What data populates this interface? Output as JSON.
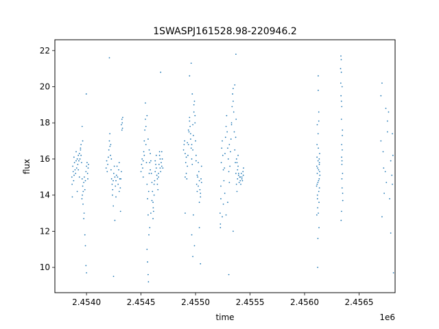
{
  "chart_data": {
    "type": "scatter",
    "title": "1SWASPJ161528.98-220946.2",
    "xlabel": "time",
    "ylabel": "flux",
    "x_offset_label": "1e6",
    "xlim": [
      2453710,
      2456830
    ],
    "ylim": [
      8.6,
      22.6
    ],
    "grid": false,
    "legend": "none",
    "color": "#1f77b4",
    "x_ticks": [
      {
        "value": 2454000,
        "label": "2.4540"
      },
      {
        "value": 2454500,
        "label": "2.4545"
      },
      {
        "value": 2455000,
        "label": "2.4550"
      },
      {
        "value": 2455500,
        "label": "2.4555"
      },
      {
        "value": 2456000,
        "label": "2.4560"
      },
      {
        "value": 2456500,
        "label": "2.4565"
      }
    ],
    "y_ticks": [
      {
        "value": 10,
        "label": "10"
      },
      {
        "value": 12,
        "label": "12"
      },
      {
        "value": 14,
        "label": "14"
      },
      {
        "value": 16,
        "label": "16"
      },
      {
        "value": 18,
        "label": "18"
      },
      {
        "value": 20,
        "label": "20"
      },
      {
        "value": 22,
        "label": "22"
      }
    ],
    "series": [
      {
        "x": [
          2453866,
          2453868,
          2453870,
          2453874,
          2453878,
          2453882,
          2453886,
          2453890,
          2453895,
          2453900,
          2453905,
          2453910,
          2453915,
          2453920,
          2453925,
          2453930,
          2453935,
          2453940,
          2453945,
          2453950,
          2453955,
          2453960,
          2453965,
          2453970,
          2453975,
          2453980,
          2453985,
          2453990,
          2453995,
          2454000,
          2454005,
          2454010,
          2454012,
          2454015,
          2454018,
          2453885,
          2453905,
          2453925,
          2453950,
          2453958,
          2453962,
          2453968,
          2453975,
          2453985,
          2453995,
          2454000,
          2453990,
          2453960,
          2453965,
          2453935,
          2453915,
          2453945,
          2453978,
          2453998,
          2454180,
          2454185,
          2454190,
          2454195,
          2454200,
          2454205,
          2454210,
          2454215,
          2454220,
          2454225,
          2454230,
          2454235,
          2454240,
          2454245,
          2454250,
          2454255,
          2454260,
          2454265,
          2454270,
          2454275,
          2454280,
          2454285,
          2454290,
          2454295,
          2454300,
          2454305,
          2454310,
          2454315,
          2454320,
          2454325,
          2454328,
          2454332,
          2454214,
          2454222,
          2454228,
          2454238,
          2454246,
          2454270,
          2454300,
          2454325,
          2454320,
          2454330,
          2454210,
          2454248,
          2454260,
          2454312,
          2454500,
          2454505,
          2454510,
          2454515,
          2454520,
          2454525,
          2454530,
          2454535,
          2454540,
          2454545,
          2454550,
          2454555,
          2454560,
          2454565,
          2454570,
          2454575,
          2454580,
          2454585,
          2454590,
          2454595,
          2454600,
          2454605,
          2454610,
          2454615,
          2454620,
          2454625,
          2454630,
          2454635,
          2454640,
          2454645,
          2454650,
          2454655,
          2454660,
          2454665,
          2454670,
          2454675,
          2454680,
          2454685,
          2454690,
          2454695,
          2454700,
          2454520,
          2454530,
          2454545,
          2454555,
          2454565,
          2454575,
          2454585,
          2454600,
          2454612,
          2454620,
          2454630,
          2454640,
          2454650,
          2454660,
          2454675,
          2454690,
          2454555,
          2454560,
          2454565,
          2454568,
          2454572,
          2454580,
          2454590,
          2454540,
          2454610,
          2454670,
          2454680,
          2454890,
          2454895,
          2454900,
          2454905,
          2454910,
          2454915,
          2454920,
          2454925,
          2454930,
          2454935,
          2454940,
          2454945,
          2454950,
          2454955,
          2454960,
          2454965,
          2454970,
          2454975,
          2454980,
          2454985,
          2454990,
          2454995,
          2455000,
          2455005,
          2455010,
          2455015,
          2455020,
          2455025,
          2455030,
          2455035,
          2455040,
          2455045,
          2455050,
          2455055,
          2454905,
          2454915,
          2454925,
          2454935,
          2454945,
          2454955,
          2454965,
          2454975,
          2454985,
          2454995,
          2455005,
          2455015,
          2455025,
          2455035,
          2455045,
          2454960,
          2454970,
          2454980,
          2454990,
          2454975,
          2454965,
          2455045,
          2454905,
          2455055,
          2455035,
          2454945,
          2455225,
          2455228,
          2455232,
          2455236,
          2455240,
          2455245,
          2455250,
          2455255,
          2455260,
          2455265,
          2455270,
          2455275,
          2455280,
          2455285,
          2455290,
          2455295,
          2455300,
          2455305,
          2455310,
          2455315,
          2455320,
          2455325,
          2455330,
          2455335,
          2455340,
          2455345,
          2455350,
          2455355,
          2455360,
          2455365,
          2455370,
          2455375,
          2455380,
          2455385,
          2455390,
          2455395,
          2455400,
          2455405,
          2455410,
          2455415,
          2455420,
          2455425,
          2455430,
          2455435,
          2455440,
          2455232,
          2455245,
          2455255,
          2455268,
          2455280,
          2455295,
          2455310,
          2455330,
          2455345,
          2455360,
          2455368,
          2455372,
          2455376,
          2455380,
          2455385,
          2455395,
          2455410,
          2455425,
          2455438,
          2455370,
          2455305,
          2455228,
          2455345,
          2455390,
          2456110,
          2456112,
          2456114,
          2456116,
          2456118,
          2456120,
          2456122,
          2456124,
          2456126,
          2456128,
          2456130,
          2456132,
          2456134,
          2456136,
          2456138,
          2456140,
          2456112,
          2456118,
          2456124,
          2456130,
          2456136,
          2456114,
          2456120,
          2456126,
          2456132,
          2456116,
          2456122,
          2456128,
          2456134,
          2456138,
          2456125,
          2456120,
          2456130,
          2456115,
          2456135,
          2456125,
          2456330,
          2456332,
          2456334,
          2456336,
          2456338,
          2456340,
          2456342,
          2456344,
          2456346,
          2456348,
          2456350,
          2456333,
          2456337,
          2456341,
          2456345,
          2456349,
          2456335,
          2456339,
          2456343,
          2456347,
          2456340,
          2456338,
          2456344,
          2456342,
          2456700,
          2456710,
          2456720,
          2456725,
          2456730,
          2456740,
          2456750,
          2456760,
          2456770,
          2456780,
          2456790,
          2456800,
          2456805,
          2456810,
          2456815,
          2456760,
          2456710,
          2456790,
          2456745,
          2456700,
          2456805
        ],
        "y": [
          15.0,
          14.6,
          13.9,
          15.6,
          15.3,
          14.8,
          15.1,
          15.8,
          15.4,
          15.2,
          15.9,
          15.5,
          16.0,
          15.7,
          15.4,
          15.9,
          16.3,
          16.0,
          16.5,
          16.2,
          15.8,
          14.9,
          14.5,
          14.2,
          14.7,
          15.0,
          14.3,
          14.8,
          15.3,
          15.6,
          15.8,
          15.2,
          14.9,
          15.5,
          15.7,
          16.1,
          16.4,
          16.2,
          16.8,
          13.8,
          14.0,
          13.5,
          12.7,
          11.8,
          10.1,
          9.7,
          11.2,
          17.8,
          17.0,
          15.0,
          14.2,
          16.6,
          13.0,
          19.6,
          15.5,
          15.9,
          15.3,
          15.7,
          16.1,
          16.5,
          17.0,
          16.7,
          16.2,
          15.4,
          14.9,
          14.6,
          14.3,
          14.8,
          15.2,
          15.6,
          15.0,
          14.5,
          14.8,
          15.1,
          15.6,
          15.0,
          14.6,
          15.4,
          15.8,
          14.9,
          14.4,
          14.9,
          15.3,
          17.6,
          18.0,
          18.3,
          17.4,
          16.8,
          16.0,
          14.0,
          13.4,
          13.9,
          14.2,
          18.2,
          17.9,
          17.7,
          21.6,
          9.5,
          12.6,
          13.1,
          15.3,
          15.7,
          16.0,
          15.5,
          15.9,
          16.4,
          17.0,
          17.6,
          18.2,
          16.8,
          15.8,
          14.6,
          13.8,
          12.9,
          14.2,
          15.2,
          15.8,
          16.3,
          15.9,
          15.2,
          14.7,
          14.2,
          13.6,
          13.1,
          14.0,
          14.8,
          15.3,
          15.7,
          15.5,
          15.1,
          14.6,
          14.3,
          15.0,
          15.7,
          16.2,
          16.0,
          15.3,
          15.8,
          16.4,
          16.0,
          15.5,
          15.0,
          16.2,
          17.8,
          18.4,
          17.1,
          16.5,
          15.4,
          13.7,
          13.3,
          14.6,
          15.9,
          16.2,
          14.9,
          15.2,
          15.5,
          15.6,
          11.0,
          10.3,
          9.6,
          9.2,
          11.8,
          12.2,
          13.0,
          19.1,
          12.7,
          16.4,
          20.8,
          16.5,
          16.8,
          17.0,
          16.3,
          15.8,
          15.2,
          14.9,
          15.6,
          16.2,
          16.8,
          17.5,
          18.3,
          17.8,
          17.1,
          16.6,
          16.0,
          15.7,
          16.5,
          17.3,
          18.6,
          19.2,
          18.4,
          17.0,
          15.9,
          14.6,
          14.2,
          15.0,
          15.8,
          15.3,
          14.8,
          14.3,
          13.9,
          14.9,
          15.6,
          15.0,
          16.1,
          16.9,
          17.6,
          18.1,
          17.4,
          16.8,
          17.9,
          19.0,
          18.0,
          16.2,
          15.1,
          14.5,
          13.6,
          14.1,
          21.3,
          19.6,
          12.9,
          11.2,
          10.6,
          11.8,
          10.2,
          13.0,
          14.7,
          12.2,
          20.6,
          13.0,
          12.4,
          14.5,
          15.8,
          16.6,
          17.0,
          16.2,
          15.4,
          14.8,
          15.5,
          16.3,
          17.2,
          17.8,
          18.4,
          17.5,
          16.6,
          16.0,
          15.3,
          14.7,
          15.6,
          16.4,
          17.1,
          18.0,
          18.9,
          19.6,
          19.2,
          18.6,
          17.5,
          16.5,
          15.8,
          15.2,
          14.6,
          14.2,
          14.9,
          15.6,
          15.1,
          14.7,
          15.0,
          14.8,
          14.6,
          15.2,
          15.0,
          14.8,
          15.3,
          15.5,
          13.8,
          12.8,
          13.5,
          14.1,
          12.9,
          13.6,
          16.8,
          17.9,
          19.9,
          20.1,
          17.2,
          18.2,
          16.0,
          15.8,
          15.4,
          15.2,
          15.0,
          14.9,
          15.1,
          21.8,
          9.6,
          12.2,
          12.0,
          16.2,
          14.5,
          15.6,
          16.8,
          15.2,
          14.0,
          13.3,
          14.7,
          15.9,
          16.6,
          15.4,
          14.2,
          13.6,
          14.9,
          15.8,
          16.3,
          15.1,
          12.9,
          13.8,
          17.4,
          18.6,
          14.4,
          16.1,
          15.5,
          13.0,
          12.2,
          17.9,
          11.6,
          14.8,
          16.0,
          15.3,
          20.6,
          10.0,
          18.1,
          14.6,
          15.7,
          19.8,
          21.0,
          20.2,
          19.5,
          21.5,
          18.2,
          16.8,
          15.7,
          14.4,
          17.3,
          15.2,
          13.7,
          21.7,
          20.8,
          18.9,
          16.5,
          14.1,
          12.6,
          13.1,
          15.9,
          17.6,
          16.1,
          19.2,
          20.0,
          14.9,
          17.0,
          20.2,
          16.4,
          15.5,
          14.1,
          15.3,
          14.7,
          17.5,
          18.6,
          13.8,
          15.9,
          15.1,
          17.4,
          16.2,
          9.7,
          18.1,
          12.8,
          11.9,
          18.8,
          19.5,
          14.6
        ]
      }
    ]
  }
}
